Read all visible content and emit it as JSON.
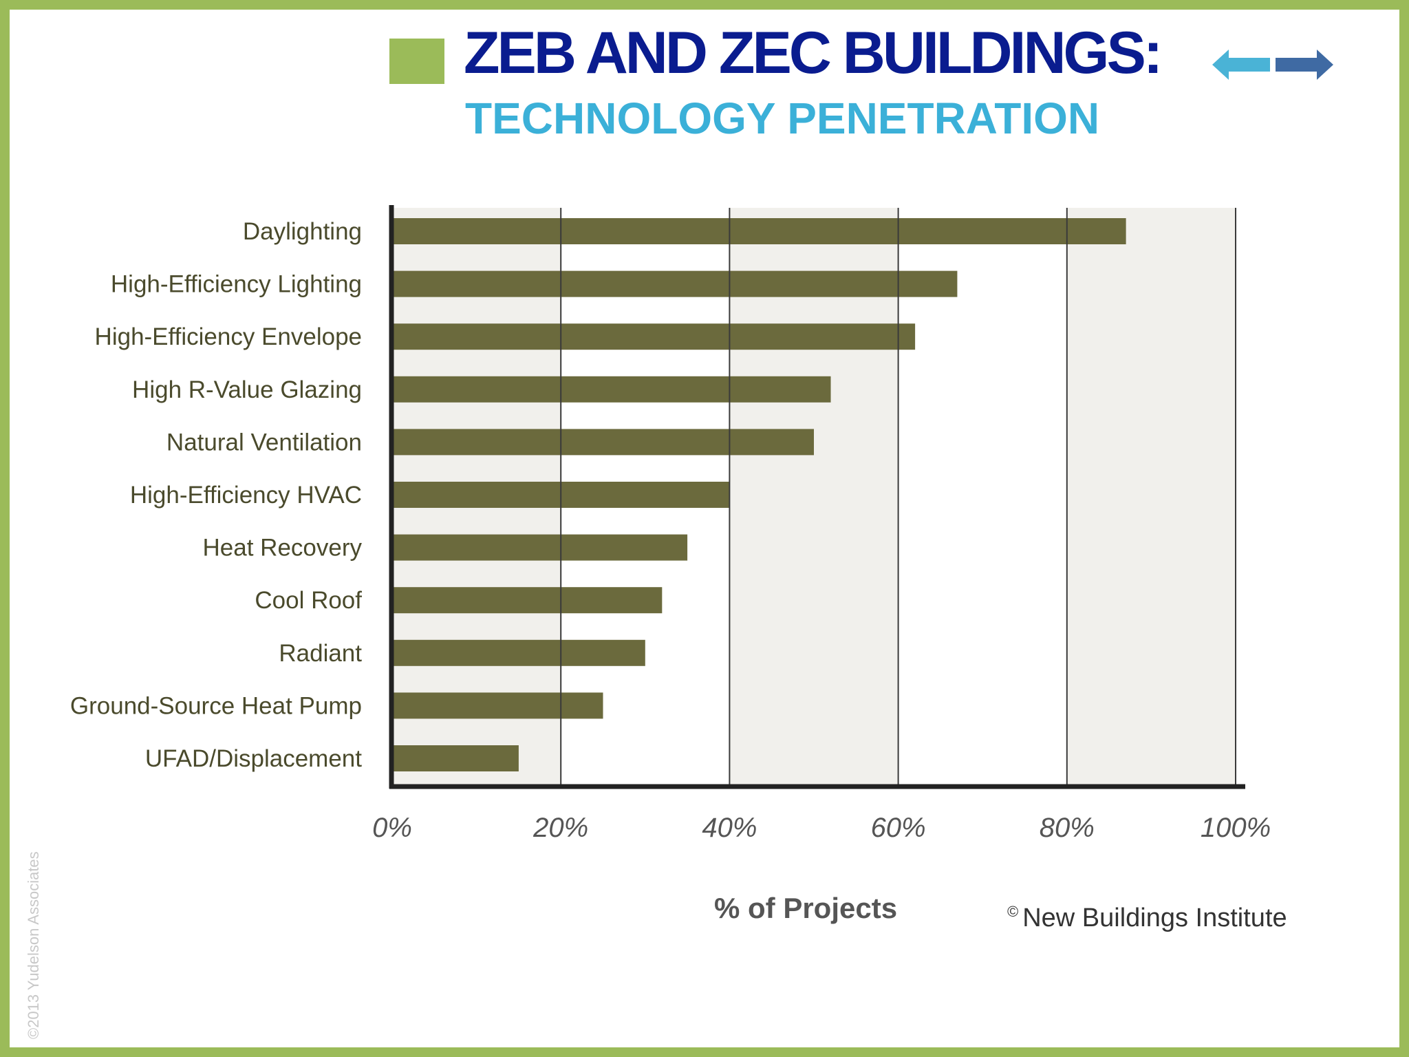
{
  "slide": {
    "title": "ZEB AND ZEC BUILDINGS:",
    "subtitle": "TECHNOLOGY PENETRATION",
    "watermark": "©2013 Yudelson Associates",
    "credit_symbol": "©",
    "credit_text": "New Buildings Institute",
    "accent_green": "#9bbb59",
    "title_color": "#0a1c8f",
    "subtitle_color": "#3bb0d8",
    "nav_icons": [
      "arrow-left-icon",
      "arrow-right-icon"
    ]
  },
  "chart_data": {
    "type": "bar",
    "orientation": "horizontal",
    "categories": [
      "Daylighting",
      "High-Efficiency Lighting",
      "High-Efficiency Envelope",
      "High R-Value Glazing",
      "Natural Ventilation",
      "High-Efficiency HVAC",
      "Heat Recovery",
      "Cool Roof",
      "Radiant",
      "Ground-Source Heat Pump",
      "UFAD/Displacement"
    ],
    "values": [
      87,
      67,
      62,
      52,
      50,
      40,
      35,
      32,
      30,
      25,
      15
    ],
    "xlabel": "% of Projects",
    "xlim": [
      0,
      100
    ],
    "xticks": [
      "0%",
      "20%",
      "40%",
      "60%",
      "80%",
      "100%"
    ],
    "grid": true,
    "bar_color": "#6b6a3d"
  }
}
